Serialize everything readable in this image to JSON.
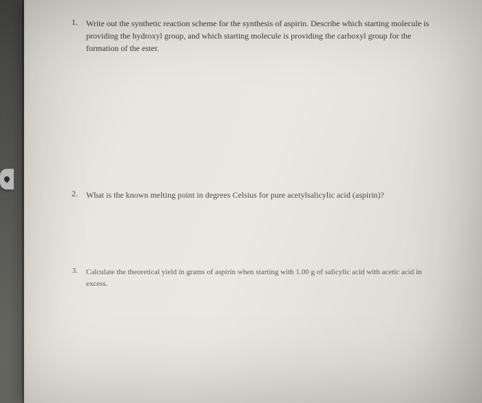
{
  "questions": [
    {
      "number": "1.",
      "text": "Write out the synthetic reaction scheme for the synthesis of aspirin. Describe which starting molecule is providing the hydroxyl group, and which starting molecule is providing the carboxyl group for the formation of the ester."
    },
    {
      "number": "2.",
      "text": "What is the known melting point in degrees Celsius for pure acetylsalicylic acid (aspirin)?"
    },
    {
      "number": "3.",
      "text": "Calculate the theoretical yield in grams of aspirin when starting with 1.00 g of salicylic acid with acetic acid in excess."
    }
  ]
}
